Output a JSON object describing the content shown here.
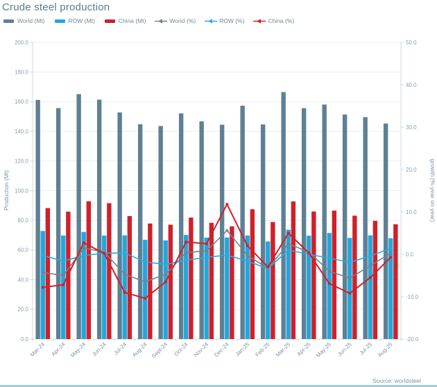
{
  "colors": {
    "world_bar": "#5e8095",
    "row_bar": "#22a7dd",
    "china_bar": "#d0202a",
    "world_line": "#74828e",
    "row_line": "#29abe2",
    "china_line": "#d21f2a",
    "title": "#567c8e",
    "tick_label": "#8aa0b0",
    "axis_label": "#7b93a4",
    "gridline": "#eaeef1",
    "axis_line": "#ccd8e0",
    "source": "#7b93a4",
    "bottom_strip": "#a9c8d9"
  },
  "chart_data": {
    "type": "bar+line combo",
    "title": "Crude steel production",
    "source": "Source: worldsteel",
    "legend_position": "top",
    "grid": "horizontal",
    "categories": [
      "Mar-24",
      "Apr-24",
      "May-24",
      "Jun-24",
      "Jul-24",
      "Aug-24",
      "Sept-24",
      "Oct-24",
      "Nov-24",
      "Dec-24",
      "Jan-25",
      "Feb-25",
      "Mar-25",
      "Apr-25",
      "May-25",
      "Jun-25",
      "Jul-25",
      "Aug-25"
    ],
    "series": [
      {
        "name": "World (Mt)",
        "type": "bar",
        "axis": "left",
        "color_key": "world_bar",
        "values": [
          161.2,
          155.7,
          165.1,
          161.4,
          152.8,
          144.8,
          143.6,
          152.1,
          146.8,
          144.5,
          157.3,
          144.7,
          166.5,
          155.7,
          158.1,
          151.4,
          149.6,
          145.3
        ]
      },
      {
        "name": "ROW (Mt)",
        "type": "bar",
        "axis": "left",
        "color_key": "row_bar",
        "values": [
          72.9,
          69.8,
          72.2,
          69.8,
          69.9,
          66.9,
          66.5,
          70.2,
          68.4,
          68.5,
          69.8,
          65.8,
          73.7,
          69.7,
          71.5,
          68.2,
          69.9,
          67.9
        ]
      },
      {
        "name": "China (Mt)",
        "type": "bar",
        "axis": "left",
        "color_key": "china_bar",
        "values": [
          88.3,
          85.9,
          92.9,
          91.6,
          82.9,
          77.9,
          77.1,
          81.9,
          78.4,
          76.0,
          87.5,
          78.9,
          92.8,
          86.0,
          86.6,
          83.2,
          79.7,
          77.4
        ]
      },
      {
        "name": "World (%)",
        "type": "line",
        "axis": "right",
        "color_key": "world_line",
        "values": [
          -4.3,
          -5.0,
          1.5,
          0.5,
          -4.7,
          -6.5,
          -4.7,
          0.4,
          0.8,
          5.6,
          -0.3,
          -3.3,
          2.5,
          0.5,
          -4.0,
          -5.6,
          -2.7,
          0.3
        ]
      },
      {
        "name": "ROW (%)",
        "type": "line",
        "axis": "right",
        "color_key": "row_line",
        "values": [
          -0.3,
          -1.6,
          -0.3,
          0.3,
          0.3,
          -1.8,
          -2.4,
          -1.4,
          -0.7,
          -0.2,
          -1.6,
          -3.4,
          1.0,
          0.0,
          -0.9,
          -1.9,
          -0.4,
          1.4
        ]
      },
      {
        "name": "China (%)",
        "type": "line",
        "axis": "right",
        "color_key": "china_line",
        "values": [
          -7.8,
          -7.2,
          2.7,
          0.2,
          -9.0,
          -10.4,
          -6.5,
          2.9,
          2.5,
          11.8,
          2.0,
          -3.0,
          5.0,
          0.3,
          -6.9,
          -9.2,
          -5.5,
          -0.7
        ]
      }
    ],
    "left_axis": {
      "label": "Production (Mt)",
      "min": 0,
      "max": 200,
      "ticks": [
        "0.0",
        "20.0",
        "40.0",
        "60.0",
        "80.0",
        "100.0",
        "120.0",
        "140.0",
        "160.0",
        "180.0",
        "200.0"
      ]
    },
    "right_axis": {
      "label": "growth (% year on year)",
      "min": -20,
      "max": 50,
      "ticks": [
        "-20.0",
        "-10.0",
        "0.0",
        "10.0",
        "20.0",
        "30.0",
        "40.0",
        "50.0"
      ]
    }
  }
}
